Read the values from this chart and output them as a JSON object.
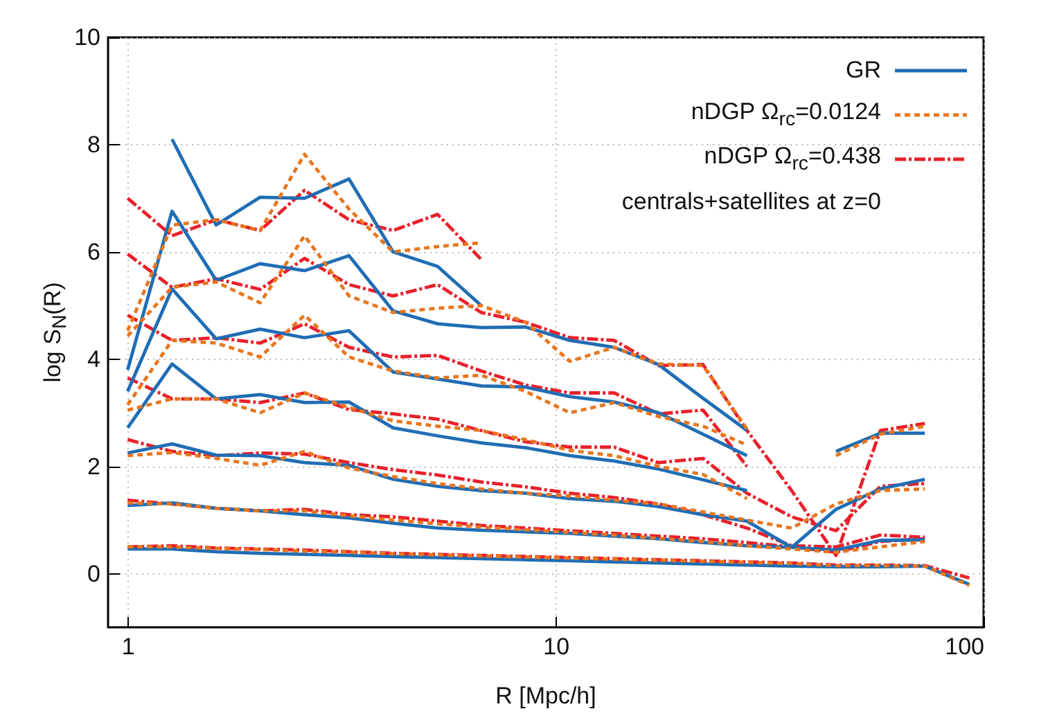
{
  "chart_data": {
    "type": "line",
    "xlabel": "R [Mpc/h]",
    "ylabel": "log S$_{N}$(R)",
    "annotations": [
      "centrals+satellites at z=0"
    ],
    "x": [
      1,
      1.27,
      1.61,
      2.04,
      2.59,
      3.29,
      4.17,
      5.3,
      6.7,
      8.5,
      10.8,
      13.7,
      17.4,
      22.1,
      28,
      35.6,
      45.2,
      57.4,
      72.9,
      92.6
    ],
    "series": [
      {
        "name": "GR",
        "color": "#1f6db4",
        "line_style": "solid",
        "values": [
          0.46,
          0.46,
          0.41,
          0.38,
          0.36,
          0.34,
          0.32,
          0.3,
          0.28,
          0.26,
          0.24,
          0.22,
          0.2,
          0.18,
          0.16,
          0.14,
          0.13,
          0.13,
          0.14,
          -0.2
        ]
      },
      {
        "color": "#1f6db4",
        "line_style": "solid",
        "values": [
          1.27,
          1.32,
          1.22,
          1.17,
          1.1,
          1.04,
          0.94,
          0.85,
          0.81,
          0.78,
          0.75,
          0.7,
          0.65,
          0.58,
          0.52,
          0.49,
          0.44,
          0.62,
          0.63,
          null
        ]
      },
      {
        "color": "#1f6db4",
        "line_style": "solid",
        "values": [
          2.25,
          2.42,
          2.21,
          2.2,
          2.07,
          2.02,
          1.76,
          1.63,
          1.55,
          1.5,
          1.4,
          1.35,
          1.25,
          1.1,
          0.98,
          0.49,
          1.2,
          1.58,
          1.76,
          null
        ]
      },
      {
        "color": "#1f6db4",
        "line_style": "solid",
        "values": [
          2.72,
          3.91,
          3.26,
          3.34,
          3.19,
          3.2,
          2.72,
          2.57,
          2.44,
          2.35,
          2.2,
          2.1,
          1.95,
          1.75,
          1.55,
          null,
          2.28,
          2.62,
          2.62,
          null
        ]
      },
      {
        "color": "#1f6db4",
        "line_style": "solid",
        "values": [
          3.4,
          5.31,
          4.38,
          4.56,
          4.4,
          4.53,
          3.76,
          3.63,
          3.5,
          3.48,
          3.3,
          3.2,
          3.0,
          2.6,
          2.2,
          null,
          null,
          null,
          null,
          null
        ]
      },
      {
        "color": "#1f6db4",
        "line_style": "solid",
        "values": [
          3.8,
          6.76,
          5.47,
          5.78,
          5.65,
          5.93,
          4.9,
          4.66,
          4.59,
          4.6,
          4.35,
          4.22,
          3.9,
          3.27,
          2.67,
          null,
          null,
          null,
          null,
          null
        ]
      },
      {
        "color": "#1f6db4",
        "line_style": "solid",
        "values": [
          null,
          8.1,
          6.5,
          7.02,
          7.0,
          7.36,
          6.0,
          5.73,
          5.0,
          null,
          null,
          null,
          null,
          null,
          null,
          null,
          null,
          null,
          null,
          null
        ]
      },
      {
        "name": "nDGP Ω$_{rc}$=0.0124",
        "color": "#e8761e",
        "line_style": "dashed",
        "values": [
          0.5,
          0.5,
          0.47,
          0.45,
          0.42,
          0.4,
          0.37,
          0.35,
          0.33,
          0.31,
          0.29,
          0.27,
          0.25,
          0.23,
          0.21,
          0.19,
          0.15,
          0.15,
          0.14,
          -0.22
        ]
      },
      {
        "color": "#e8761e",
        "line_style": "dashed",
        "values": [
          1.32,
          1.3,
          1.22,
          1.17,
          1.17,
          1.08,
          1.0,
          0.93,
          0.87,
          0.82,
          0.77,
          0.72,
          0.66,
          0.6,
          0.52,
          0.46,
          0.4,
          0.5,
          0.6,
          null
        ]
      },
      {
        "color": "#e8761e",
        "line_style": "dashed",
        "values": [
          2.2,
          2.26,
          2.15,
          2.02,
          2.28,
          1.97,
          1.81,
          1.68,
          1.58,
          1.5,
          1.45,
          1.37,
          1.3,
          1.15,
          1.0,
          0.85,
          1.3,
          1.55,
          1.58,
          null
        ]
      },
      {
        "color": "#e8761e",
        "line_style": "dashed",
        "values": [
          3.05,
          3.26,
          3.26,
          3.0,
          3.37,
          3.1,
          2.85,
          2.75,
          2.67,
          2.5,
          2.3,
          2.2,
          2.0,
          1.85,
          1.4,
          null,
          2.2,
          2.6,
          2.75,
          null
        ]
      },
      {
        "color": "#e8761e",
        "line_style": "dashed",
        "values": [
          3.15,
          4.35,
          4.3,
          4.04,
          4.82,
          4.04,
          3.78,
          3.65,
          3.7,
          3.4,
          3.0,
          3.19,
          2.93,
          2.75,
          2.4,
          null,
          null,
          null,
          null,
          null
        ]
      },
      {
        "color": "#e8761e",
        "line_style": "dashed",
        "values": [
          4.43,
          5.34,
          5.44,
          5.05,
          6.3,
          5.18,
          4.87,
          4.95,
          5.0,
          4.69,
          3.96,
          4.22,
          3.91,
          3.88,
          2.7,
          null,
          null,
          null,
          null,
          null
        ]
      },
      {
        "color": "#e8761e",
        "line_style": "dashed",
        "values": [
          4.53,
          6.5,
          6.6,
          6.4,
          7.82,
          6.8,
          6.0,
          6.1,
          6.17,
          null,
          null,
          null,
          null,
          null,
          null,
          null,
          null,
          null,
          null,
          null
        ]
      },
      {
        "name": "nDGP Ω$_{rc}$=0.438",
        "color": "#e8202a",
        "line_style": "dashdot",
        "values": [
          0.5,
          0.52,
          0.48,
          0.46,
          0.44,
          0.41,
          0.38,
          0.36,
          0.34,
          0.32,
          0.3,
          0.28,
          0.26,
          0.24,
          0.22,
          0.2,
          0.16,
          0.16,
          0.15,
          -0.08
        ]
      },
      {
        "color": "#e8202a",
        "line_style": "dashdot",
        "values": [
          1.37,
          1.3,
          1.22,
          1.17,
          1.2,
          1.1,
          1.06,
          0.98,
          0.9,
          0.85,
          0.8,
          0.75,
          0.7,
          0.65,
          0.58,
          0.5,
          0.4,
          0.6,
          0.65,
          null
        ]
      },
      {
        "color": "#e8202a",
        "line_style": "dashdot",
        "values": [
          2.5,
          2.28,
          2.2,
          2.25,
          2.23,
          2.07,
          1.94,
          1.84,
          1.71,
          1.62,
          1.5,
          1.42,
          1.3,
          1.1,
          0.85,
          0.52,
          0.5,
          0.72,
          0.68,
          null
        ]
      },
      {
        "color": "#e8202a",
        "line_style": "dashdot",
        "values": [
          3.65,
          3.26,
          3.26,
          3.19,
          3.37,
          3.06,
          2.98,
          2.88,
          2.67,
          2.46,
          2.36,
          2.36,
          2.07,
          2.15,
          1.5,
          1.06,
          0.8,
          1.63,
          1.68,
          null
        ]
      },
      {
        "color": "#e8202a",
        "line_style": "dashdot",
        "values": [
          4.82,
          4.35,
          4.4,
          4.3,
          4.66,
          4.22,
          4.04,
          4.07,
          3.78,
          3.52,
          3.37,
          3.37,
          2.98,
          3.05,
          2.0,
          null,
          null,
          null,
          null,
          null
        ]
      },
      {
        "color": "#e8202a",
        "line_style": "dashdot",
        "values": [
          5.96,
          5.34,
          5.5,
          5.3,
          5.88,
          5.39,
          5.18,
          5.39,
          4.87,
          4.69,
          4.4,
          4.35,
          3.88,
          3.9,
          2.67,
          1.55,
          0.34,
          2.67,
          2.8,
          null
        ]
      },
      {
        "color": "#e8202a",
        "line_style": "dashdot",
        "values": [
          7.0,
          6.3,
          6.6,
          6.4,
          7.15,
          6.6,
          6.4,
          6.7,
          5.86,
          null,
          null,
          null,
          null,
          null,
          null,
          null,
          null,
          null,
          null,
          null
        ]
      }
    ],
    "log": "x",
    "xlim": [
      0.9,
      100
    ],
    "xticks": [
      1,
      10,
      100
    ],
    "ylim": [
      -1,
      10
    ],
    "yticks": [
      0,
      2,
      4,
      6,
      8,
      10
    ],
    "grid": true,
    "legend": "top right"
  }
}
